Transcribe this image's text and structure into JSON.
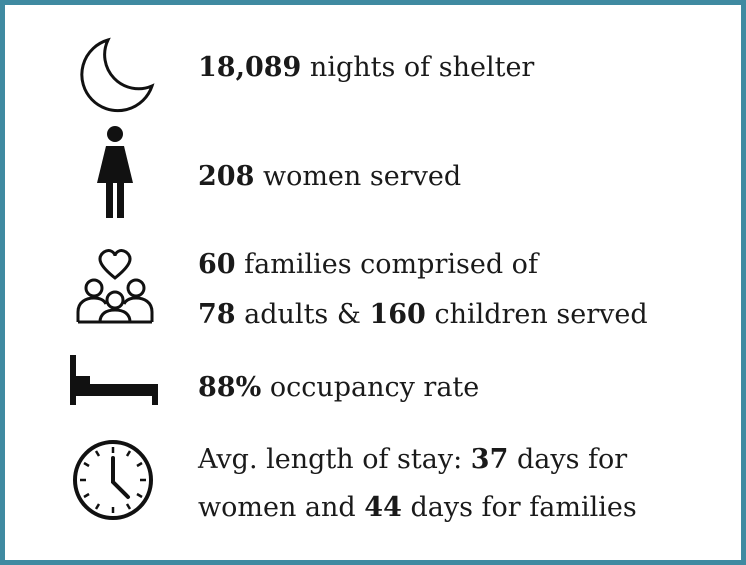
{
  "items": [
    {
      "lines": [
        [
          {
            "text": "18,089",
            "bold": true
          },
          {
            "text": " nights of shelter",
            "bold": false
          }
        ]
      ]
    },
    {
      "lines": [
        [
          {
            "text": "208",
            "bold": true
          },
          {
            "text": " women served",
            "bold": false
          }
        ]
      ]
    },
    {
      "lines": [
        [
          {
            "text": "60",
            "bold": true
          },
          {
            "text": " families comprised of",
            "bold": false
          }
        ],
        [
          {
            "text": "78",
            "bold": true
          },
          {
            "text": " adults & ",
            "bold": false
          },
          {
            "text": "160",
            "bold": true
          },
          {
            "text": " children served",
            "bold": false
          }
        ]
      ]
    },
    {
      "lines": [
        [
          {
            "text": "88%",
            "bold": true
          },
          {
            "text": " occupancy rate",
            "bold": false
          }
        ]
      ]
    },
    {
      "lines": [
        [
          {
            "text": "Avg. length of stay: ",
            "bold": false
          },
          {
            "text": "37",
            "bold": true
          },
          {
            "text": " days for",
            "bold": false
          }
        ],
        [
          {
            "text": "women and ",
            "bold": false
          },
          {
            "text": "44",
            "bold": true
          },
          {
            "text": " days for families",
            "bold": false
          }
        ]
      ]
    }
  ]
}
